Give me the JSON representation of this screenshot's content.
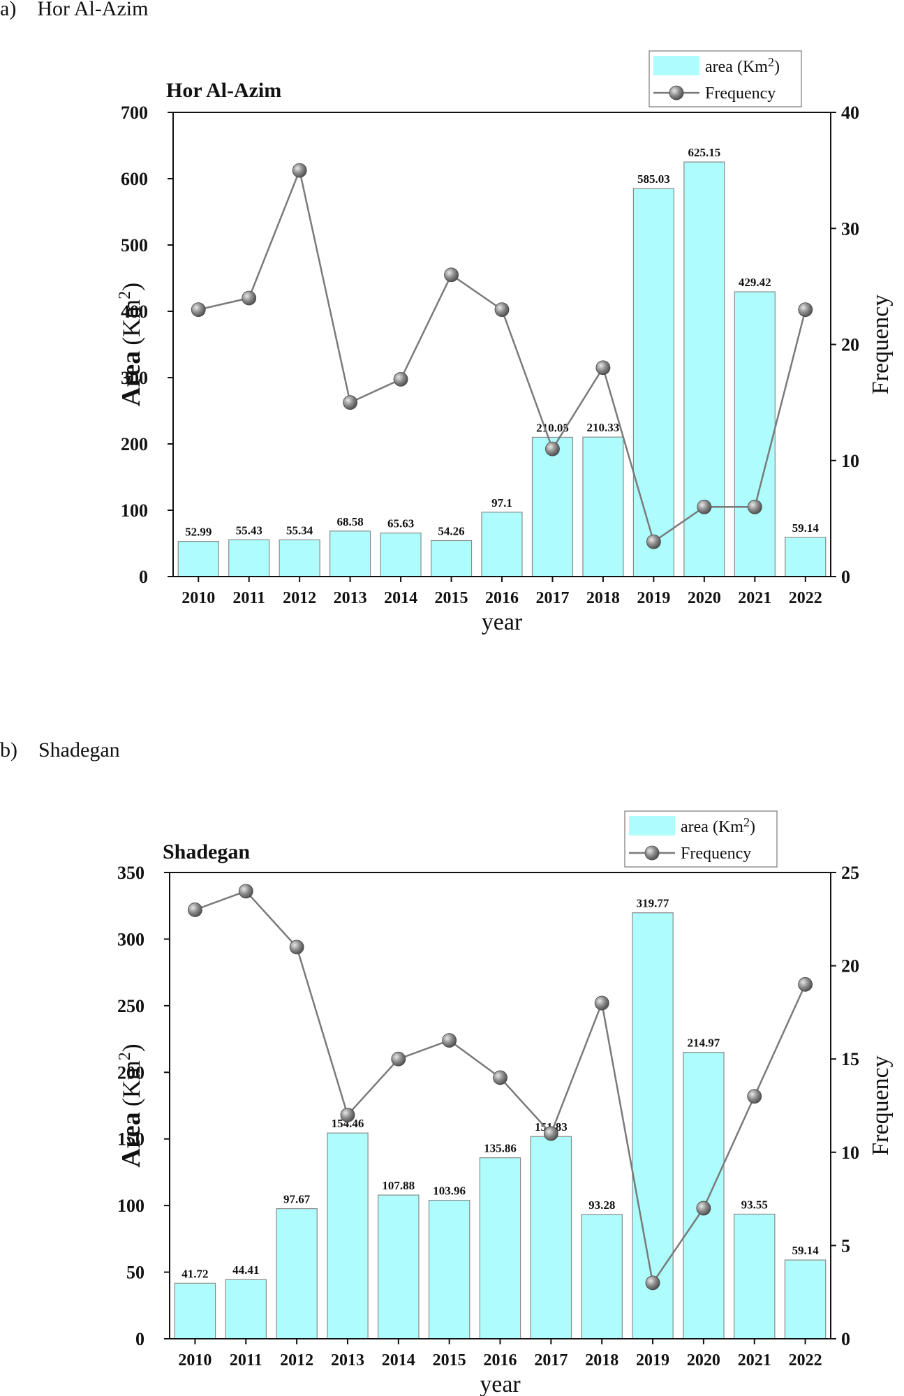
{
  "panels": [
    {
      "label": "a)",
      "name": "Hor Al-Azim"
    },
    {
      "label": "b)",
      "name": "Shadegan"
    }
  ],
  "colors": {
    "bar_fill": "#aefcfc",
    "bar_stroke": "#8a8a8a",
    "line": "#7a7a7a",
    "marker": "#8c8c8c"
  },
  "chart_data": [
    {
      "type": "bar",
      "title": "Hor Al-Azim",
      "xlabel": "year",
      "ylabel_bold": "Area",
      "ylabel_unit_prefix": "(Km",
      "ylabel_unit_exp": "2",
      "ylabel_unit_suffix": ")",
      "y2label": "Frequency",
      "categories": [
        "2010",
        "2011",
        "2012",
        "2013",
        "2014",
        "2015",
        "2016",
        "2017",
        "2018",
        "2019",
        "2020",
        "2021",
        "2022"
      ],
      "ylim": [
        0,
        700
      ],
      "yticks": [
        0,
        100,
        200,
        300,
        400,
        500,
        600,
        700
      ],
      "y2lim": [
        0,
        40
      ],
      "y2ticks": [
        0,
        10,
        20,
        30,
        40
      ],
      "legend_position": "top-right",
      "legend": {
        "area_prefix": "area (Km",
        "area_exp": "2",
        "area_suffix": ")",
        "frequency": "Frequency"
      },
      "series": [
        {
          "name": "area (Km2)",
          "type": "bar",
          "axis": "left",
          "values": [
            52.99,
            55.43,
            55.34,
            68.58,
            65.63,
            54.26,
            97.1,
            210.05,
            210.33,
            585.03,
            625.15,
            429.42,
            59.14
          ],
          "labels": [
            "52.99",
            "55.43",
            "55.34",
            "68.58",
            "65.63",
            "54.26",
            "97.1",
            "210.05",
            "210.33",
            "585.03",
            "625.15",
            "429.42",
            "59.14"
          ]
        },
        {
          "name": "Frequency",
          "type": "line",
          "axis": "right",
          "values": [
            23,
            24,
            35,
            15,
            17,
            26,
            23,
            11,
            18,
            3,
            6,
            6,
            23
          ]
        }
      ]
    },
    {
      "type": "bar",
      "title": "Shadegan",
      "xlabel": "year",
      "ylabel_bold": "Area",
      "ylabel_unit_prefix": "(Km",
      "ylabel_unit_exp": "2",
      "ylabel_unit_suffix": ")",
      "y2label": "Frequency",
      "categories": [
        "2010",
        "2011",
        "2012",
        "2013",
        "2014",
        "2015",
        "2016",
        "2017",
        "2018",
        "2019",
        "2020",
        "2021",
        "2022"
      ],
      "ylim": [
        0,
        350
      ],
      "yticks": [
        0,
        50,
        100,
        150,
        200,
        250,
        300,
        350
      ],
      "y2lim": [
        0,
        25
      ],
      "y2ticks": [
        0,
        5,
        10,
        15,
        20,
        25
      ],
      "legend_position": "top-right",
      "legend": {
        "area_prefix": "area (Km",
        "area_exp": "2",
        "area_suffix": ")",
        "frequency": "Frequency"
      },
      "series": [
        {
          "name": "area (Km2)",
          "type": "bar",
          "axis": "left",
          "values": [
            41.72,
            44.41,
            97.67,
            154.46,
            107.88,
            103.96,
            135.86,
            151.83,
            93.28,
            319.77,
            214.97,
            93.55,
            59.14
          ],
          "labels": [
            "41.72",
            "44.41",
            "97.67",
            "154.46",
            "107.88",
            "103.96",
            "135.86",
            "151.83",
            "93.28",
            "319.77",
            "214.97",
            "93.55",
            "59.14"
          ]
        },
        {
          "name": "Frequency",
          "type": "line",
          "axis": "right",
          "values": [
            23,
            24,
            21,
            12,
            15,
            16,
            14,
            11,
            18,
            3,
            7,
            13,
            19
          ]
        }
      ]
    }
  ]
}
